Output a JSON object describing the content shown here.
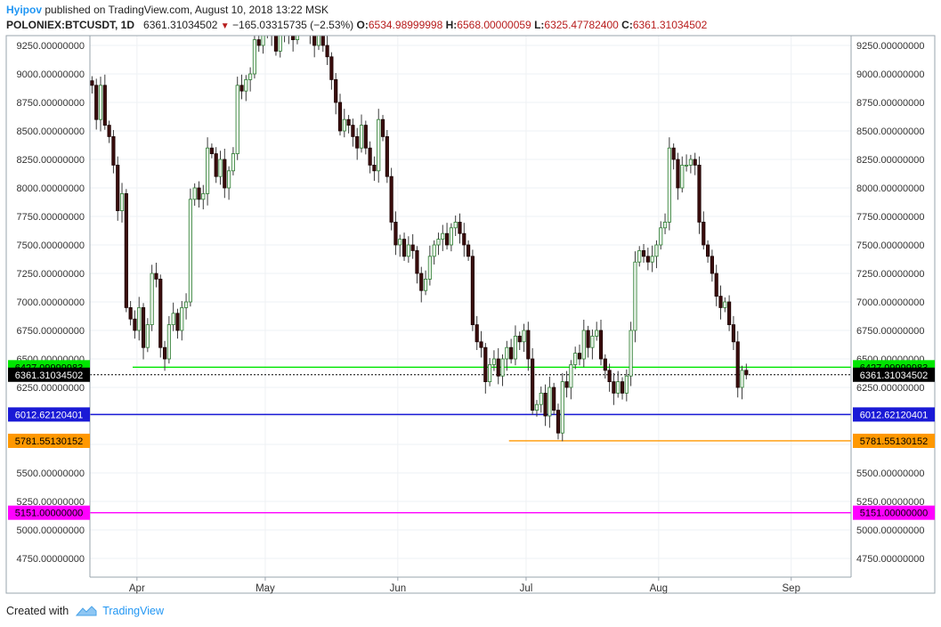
{
  "header": {
    "author": "Hyipov",
    "published_text": "published on TradingView.com, August 10, 2018 13:22 MSK"
  },
  "ohlc": {
    "symbol": "POLONIEX:BTCUSDT, 1D",
    "last": "6361.31034502",
    "change": "−165.03315735 (−2.53%)",
    "o_label": "O:",
    "o_value": "6534.98999998",
    "h_label": "H:",
    "h_value": "6568.00000059",
    "l_label": "L:",
    "l_value": "6325.47782400",
    "c_label": "C:",
    "c_value": "6361.31034502"
  },
  "footer": {
    "created_with": "Created with",
    "brand": "TradingView"
  },
  "colors": {
    "up_body": "#e8f3e8",
    "down_body": "#3b0d0d",
    "green_line": "#00e600",
    "blue_line": "#1a1ad6",
    "orange_line": "#ff9800",
    "magenta_line": "#ff00ff",
    "grid": "#eef1f4",
    "brand": "#2196f3"
  },
  "chart_data": {
    "type": "candlestick",
    "y_ticks": [
      "9250.00000000",
      "9000.00000000",
      "8750.00000000",
      "8500.00000000",
      "8250.00000000",
      "8000.00000000",
      "7750.00000000",
      "7500.00000000",
      "7250.00000000",
      "7000.00000000",
      "6750.00000000",
      "6500.00000000",
      "6250.00000000",
      "6000.00000000",
      "5750.00000000",
      "5500.00000000",
      "5250.00000000",
      "5000.00000000",
      "4750.00000000"
    ],
    "y_tick_values": [
      9250,
      9000,
      8750,
      8500,
      8250,
      8000,
      7750,
      7500,
      7250,
      7000,
      6750,
      6500,
      6250,
      6000,
      5750,
      5500,
      5250,
      5000,
      4750
    ],
    "ylim": [
      4560,
      9360
    ],
    "x_start_date": "2018-03-21",
    "x_end_date": "2018-09-15",
    "x_ticks": [
      {
        "label": "Apr",
        "date": "2018-04-01"
      },
      {
        "label": "May",
        "date": "2018-05-01"
      },
      {
        "label": "Jun",
        "date": "2018-06-01"
      },
      {
        "label": "Jul",
        "date": "2018-07-01"
      },
      {
        "label": "Aug",
        "date": "2018-08-01"
      },
      {
        "label": "Sep",
        "date": "2018-09-01"
      }
    ],
    "series_start_date": "2018-03-21",
    "closes": [
      8900,
      8600,
      8900,
      8550,
      8450,
      8200,
      7800,
      7950,
      6950,
      6850,
      6750,
      6950,
      6600,
      6800,
      7250,
      7200,
      6600,
      6500,
      6800,
      6900,
      6750,
      6950,
      7000,
      7900,
      8000,
      7900,
      7950,
      8350,
      8300,
      8100,
      8250,
      8000,
      8150,
      8300,
      8900,
      8850,
      8950,
      9000,
      9300,
      9250,
      9400,
      9600,
      9350,
      9200,
      9400,
      9350,
      9700,
      9300,
      9400,
      9600,
      9500,
      9350,
      9250,
      9600,
      9250,
      9150,
      8950,
      8750,
      8500,
      8600,
      8550,
      8450,
      8350,
      8550,
      8350,
      8200,
      8150,
      8600,
      8450,
      8100,
      7700,
      7500,
      7550,
      7400,
      7500,
      7450,
      7250,
      7100,
      7200,
      7400,
      7500,
      7550,
      7600,
      7500,
      7650,
      7700,
      7600,
      7500,
      7400,
      6800,
      6650,
      6600,
      6300,
      6450,
      6500,
      6350,
      6500,
      6600,
      6500,
      6700,
      6650,
      6750,
      6500,
      6050,
      6100,
      6200,
      6000,
      6250,
      6050,
      5850,
      6300,
      6250,
      6450,
      6550,
      6500,
      6750,
      6600,
      6700,
      6750,
      6500,
      6400,
      6300,
      6200,
      6300,
      6200,
      6350,
      6750,
      7350,
      7450,
      7400,
      7350,
      7400,
      7500,
      7650,
      7700,
      8350,
      8250,
      8000,
      8200,
      8200,
      8250,
      8200,
      7700,
      7500,
      7400,
      7250,
      7050,
      6950,
      7000,
      6800,
      6650,
      6250,
      6400,
      6361
    ],
    "supports": [
      {
        "value": "6427.09999983",
        "level": 6427.1,
        "color": "#00e600",
        "start_date": "2018-03-31"
      },
      {
        "value": "6361.31034502",
        "level": 6361.31,
        "color": "#000000",
        "start_date": "2018-03-21"
      },
      {
        "value": "6012.62120401",
        "level": 6012.62,
        "color": "#1a1ad6",
        "start_date": "2018-03-21"
      },
      {
        "value": "5781.55130152",
        "level": 5781.55,
        "color": "#ff9800",
        "start_date": "2018-06-27"
      },
      {
        "value": "5151.00000000",
        "level": 5151.0,
        "color": "#ff00ff",
        "start_date": "2018-03-21"
      }
    ]
  }
}
